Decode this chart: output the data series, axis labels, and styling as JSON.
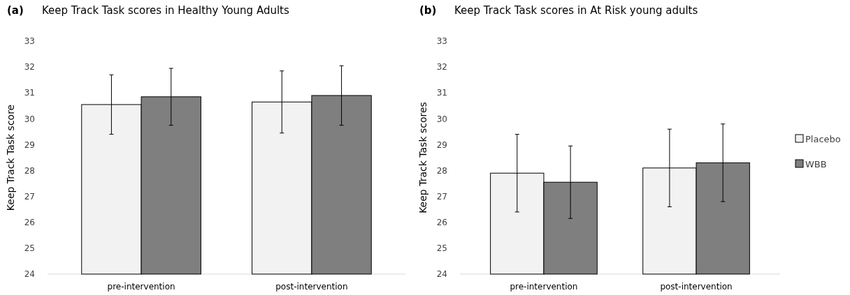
{
  "chart_data": [
    {
      "type": "bar",
      "title": "Keep Track Task scores in Healthy Young Adults",
      "ylabel": "Keep Track  Task score",
      "annotations": [
        "(a)"
      ],
      "categories": [
        "pre-intervention",
        "post-intervention"
      ],
      "series": [
        {
          "color": "#f2f2f2",
          "values": [
            30.55,
            30.65
          ],
          "errors": [
            1.15,
            1.2
          ]
        },
        {
          "color": "#7f7f7f",
          "values": [
            30.85,
            30.9
          ],
          "errors": [
            1.1,
            1.15
          ]
        }
      ],
      "ylim": [
        24,
        33
      ],
      "yticks": [
        24,
        25,
        26,
        27,
        28,
        29,
        30,
        31,
        32,
        33
      ],
      "grid": false,
      "legend": false
    },
    {
      "type": "bar",
      "title": "Keep Track Task scores in At Risk young adults",
      "ylabel": "Keep Track Task scores",
      "annotations": [
        "(b)"
      ],
      "categories": [
        "pre-intervention",
        "post-intervention"
      ],
      "series": [
        {
          "name": "Placebo",
          "color": "#f2f2f2",
          "values": [
            27.9,
            28.1
          ],
          "errors": [
            1.5,
            1.5
          ]
        },
        {
          "name": "WBB",
          "color": "#7f7f7f",
          "values": [
            27.55,
            28.3
          ],
          "errors": [
            1.4,
            1.5
          ]
        }
      ],
      "ylim": [
        24,
        33
      ],
      "yticks": [
        24,
        25,
        26,
        27,
        28,
        29,
        30,
        31,
        32,
        33
      ],
      "grid": false,
      "legend": "right"
    }
  ]
}
